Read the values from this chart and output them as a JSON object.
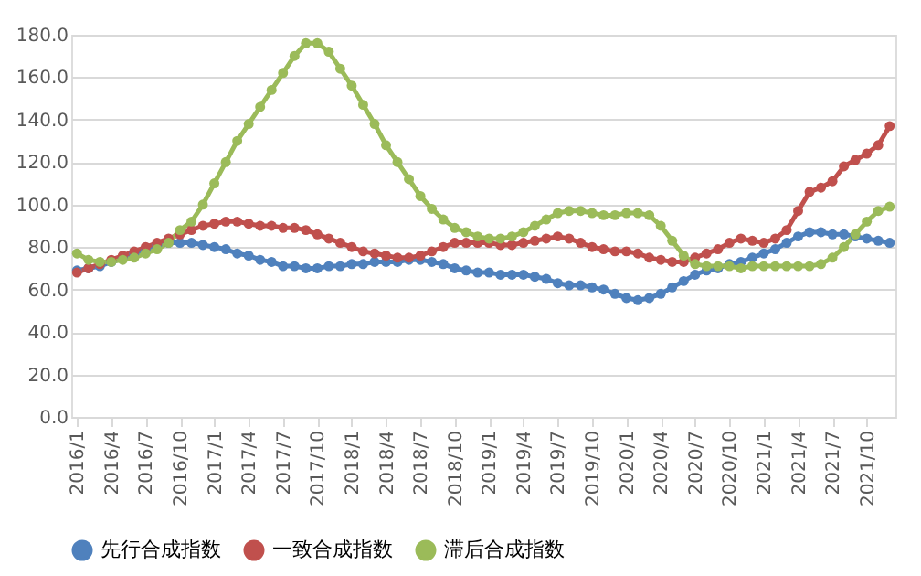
{
  "chart_data": {
    "type": "line",
    "categories": [
      "2016/1",
      null,
      null,
      "2016/4",
      null,
      null,
      "2016/7",
      null,
      null,
      "2016/10",
      null,
      null,
      "2017/1",
      null,
      null,
      "2017/4",
      null,
      null,
      "2017/7",
      null,
      null,
      "2017/10",
      null,
      null,
      "2018/1",
      null,
      null,
      "2018/4",
      null,
      null,
      "2018/7",
      null,
      null,
      "2018/10",
      null,
      null,
      "2019/1",
      null,
      null,
      "2019/4",
      null,
      null,
      "2019/7",
      null,
      null,
      "2019/10",
      null,
      null,
      "2020/1",
      null,
      null,
      "2020/4",
      null,
      null,
      "2020/7",
      null,
      null,
      "2020/10",
      null,
      null,
      "2021/1",
      null,
      null,
      "2021/4",
      null,
      null,
      "2021/7",
      null,
      null,
      "2021/10",
      null,
      null
    ],
    "series": [
      {
        "name": "先行合成指数",
        "color": "#4f81bd",
        "values": [
          69,
          70,
          71,
          73,
          75,
          77,
          79,
          81,
          82,
          82,
          82,
          81,
          80,
          79,
          77,
          76,
          74,
          73,
          71,
          71,
          70,
          70,
          71,
          71,
          72,
          72,
          73,
          73,
          73,
          74,
          74,
          73,
          72,
          70,
          69,
          68,
          68,
          67,
          67,
          67,
          66,
          65,
          63,
          62,
          62,
          61,
          60,
          58,
          56,
          55,
          56,
          58,
          61,
          64,
          67,
          69,
          70,
          72,
          73,
          75,
          77,
          79,
          82,
          85,
          87,
          87,
          86,
          86,
          85,
          84,
          83,
          82
        ]
      },
      {
        "name": "一致合成指数",
        "color": "#c0504d",
        "values": [
          68,
          70,
          72,
          74,
          76,
          78,
          80,
          82,
          84,
          86,
          88,
          90,
          91,
          92,
          92,
          91,
          90,
          90,
          89,
          89,
          88,
          86,
          84,
          82,
          80,
          78,
          77,
          76,
          75,
          75,
          76,
          78,
          80,
          82,
          82,
          82,
          82,
          81,
          81,
          82,
          83,
          84,
          85,
          84,
          82,
          80,
          79,
          78,
          78,
          77,
          75,
          74,
          73,
          73,
          75,
          77,
          79,
          82,
          84,
          83,
          82,
          84,
          88,
          97,
          106,
          108,
          111,
          118,
          121,
          124,
          128,
          137
        ]
      },
      {
        "name": "滞后合成指数",
        "color": "#9bbb59",
        "values": [
          77,
          74,
          73,
          73,
          74,
          75,
          77,
          79,
          82,
          88,
          92,
          100,
          110,
          120,
          130,
          138,
          146,
          154,
          162,
          170,
          176,
          176,
          172,
          164,
          156,
          147,
          138,
          128,
          120,
          112,
          104,
          98,
          93,
          89,
          87,
          85,
          84,
          84,
          85,
          87,
          90,
          93,
          96,
          97,
          97,
          96,
          95,
          95,
          96,
          96,
          95,
          90,
          83,
          76,
          72,
          71,
          71,
          71,
          70,
          71,
          71,
          71,
          71,
          71,
          71,
          72,
          75,
          80,
          86,
          92,
          97,
          99
        ]
      }
    ],
    "ylim": [
      0,
      180
    ],
    "yticks": [
      {
        "value": 0,
        "label": "0.0"
      },
      {
        "value": 20,
        "label": "20.0"
      },
      {
        "value": 40,
        "label": "40.0"
      },
      {
        "value": 60,
        "label": "60.0"
      },
      {
        "value": 80,
        "label": "80.0"
      },
      {
        "value": 100,
        "label": "100.0"
      },
      {
        "value": 120,
        "label": "120.0"
      },
      {
        "value": 140,
        "label": "140.0"
      },
      {
        "value": 160,
        "label": "160.0"
      },
      {
        "value": 180,
        "label": "180.0"
      }
    ],
    "grid": "y",
    "legend": "bottom",
    "marker": "circle",
    "line_style": "solid"
  }
}
